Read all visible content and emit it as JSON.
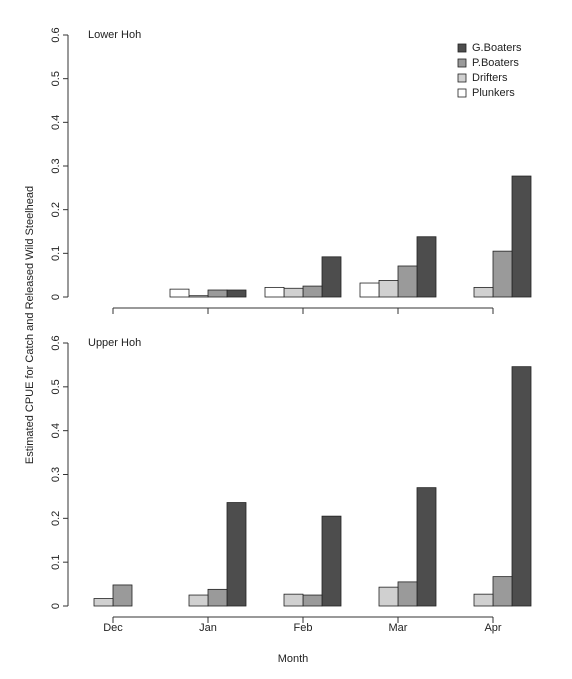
{
  "chart_data": [
    {
      "type": "bar",
      "title": "Lower Hoh",
      "ylabel": "Estimated CPUE for Catch and Released Wild Steelhead",
      "ylim": [
        0,
        0.6
      ],
      "yticks": [
        0,
        0.1,
        0.2,
        0.3,
        0.4,
        0.5,
        0.6
      ],
      "legend": "top-right",
      "series": [
        {
          "name": "G.Boaters",
          "color": "#4d4d4d",
          "values": [
            null,
            0.016,
            0.092,
            0.138,
            0.277
          ]
        },
        {
          "name": "P.Boaters",
          "color": "#9a9a9a",
          "values": [
            null,
            0.016,
            0.025,
            0.071,
            0.105
          ]
        },
        {
          "name": "Drifters",
          "color": "#d0d0d0",
          "values": [
            null,
            0.003,
            0.02,
            0.038,
            0.022
          ]
        },
        {
          "name": "Plunkers",
          "color": "#ffffff",
          "values": [
            null,
            0.018,
            0.022,
            0.032,
            null
          ]
        }
      ]
    },
    {
      "type": "bar",
      "title": "Upper Hoh",
      "xlabel": "Month",
      "categories": [
        "Dec",
        "Jan",
        "Feb",
        "Mar",
        "Apr"
      ],
      "ylim": [
        0,
        0.6
      ],
      "yticks": [
        0,
        0.1,
        0.2,
        0.3,
        0.4,
        0.5,
        0.6
      ],
      "series": [
        {
          "color": "#4d4d4d",
          "values": [
            null,
            0.236,
            0.205,
            0.27,
            0.546
          ]
        },
        {
          "color": "#9a9a9a",
          "values": [
            0.048,
            0.038,
            0.025,
            0.055,
            0.067
          ]
        },
        {
          "color": "#d0d0d0",
          "values": [
            0.017,
            0.025,
            0.027,
            0.043,
            0.027
          ]
        },
        {
          "color": "#ffffff",
          "values": [
            null,
            null,
            null,
            null,
            null
          ]
        }
      ]
    }
  ]
}
